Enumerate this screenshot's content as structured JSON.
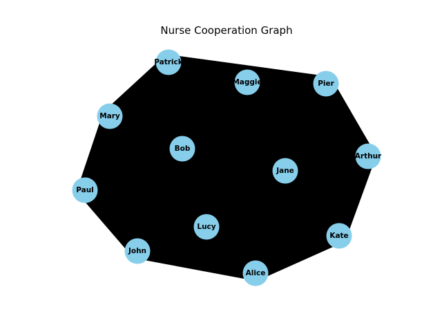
{
  "title": "Nurse Cooperation Graph",
  "colors": {
    "node_fill": "#87CEEB",
    "edge": "#000000",
    "label": "#000000",
    "background": "#ffffff"
  },
  "nodes": [
    {
      "id": "Patrick",
      "label": "Patrick"
    },
    {
      "id": "Maggie",
      "label": "Maggie"
    },
    {
      "id": "Pier",
      "label": "Pier"
    },
    {
      "id": "Mary",
      "label": "Mary"
    },
    {
      "id": "Bob",
      "label": "Bob"
    },
    {
      "id": "Arthur",
      "label": "Arthur"
    },
    {
      "id": "Jane",
      "label": "Jane"
    },
    {
      "id": "Paul",
      "label": "Paul"
    },
    {
      "id": "Lucy",
      "label": "Lucy"
    },
    {
      "id": "Kate",
      "label": "Kate"
    },
    {
      "id": "John",
      "label": "John"
    },
    {
      "id": "Alice",
      "label": "Alice"
    }
  ],
  "edges": "complete"
}
